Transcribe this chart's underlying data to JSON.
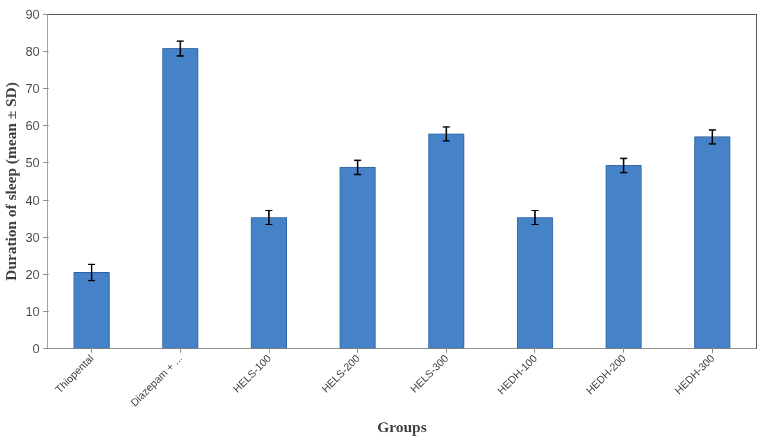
{
  "chart_data": {
    "type": "bar",
    "xlabel": "Groups",
    "ylabel": "Duration of sleep (mean ± SD)",
    "categories": [
      "Thiopental",
      "Diazepam + ...",
      "HELS-100",
      "HELS-200",
      "HELS-300",
      "HEDH-100",
      "HEDH-200",
      "HEDH-300"
    ],
    "values": [
      20.5,
      80.8,
      35.3,
      48.8,
      57.8,
      35.3,
      49.3,
      57.0
    ],
    "errors": [
      2.2,
      2,
      1.9,
      1.9,
      1.9,
      1.9,
      1.9,
      1.9
    ],
    "color": "#4682c8",
    "ylim": [
      0,
      90
    ],
    "yticks": [
      0,
      10,
      20,
      30,
      40,
      50,
      60,
      70,
      80,
      90
    ],
    "grid": false
  }
}
